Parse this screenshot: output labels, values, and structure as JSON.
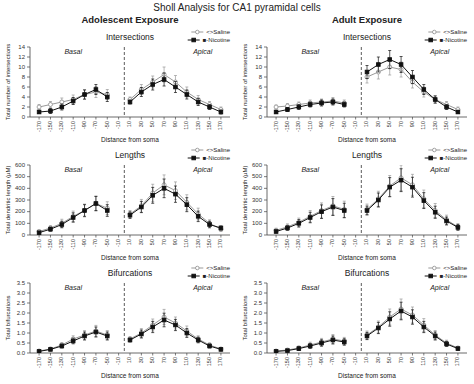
{
  "title": "Sholl Analysis for CA1 pyramidal cells",
  "column_titles": [
    "Adolescent Exposure",
    "Adult Exposure"
  ],
  "chart_data": [
    {
      "type": "line",
      "title": "Intersections",
      "xlabel": "Distance from soma",
      "ylabel": "Total number of intersections",
      "categories": [
        "-170",
        "-150",
        "-130",
        "-110",
        "-90",
        "-70",
        "-50",
        "-10",
        "10",
        "30",
        "50",
        "70",
        "90",
        "110",
        "130",
        "150",
        "170"
      ],
      "annotations": [
        "Basal",
        "Apical"
      ],
      "ylim": [
        0,
        14
      ],
      "yticks": [
        0,
        2,
        4,
        6,
        8,
        10,
        12,
        14
      ],
      "grid": false,
      "legend": "upper right",
      "series": [
        {
          "name": "<>Saline",
          "color": "#999999",
          "marker": "circle-open",
          "values": [
            2.0,
            2.5,
            3.0,
            3.5,
            4.5,
            5.0,
            4.5,
            null,
            3.5,
            5.5,
            7.0,
            8.5,
            7.0,
            5.0,
            3.5,
            2.5,
            1.5
          ],
          "errors": [
            0.5,
            0.6,
            0.8,
            0.9,
            1.0,
            1.1,
            1.0,
            null,
            0.5,
            1.0,
            1.2,
            1.5,
            1.3,
            1.0,
            0.8,
            0.6,
            0.5
          ]
        },
        {
          "name": "■-Nicotine",
          "color": "#111111",
          "marker": "square",
          "values": [
            1.0,
            1.2,
            2.0,
            3.2,
            4.5,
            5.5,
            4.0,
            null,
            3.0,
            5.0,
            6.5,
            7.5,
            6.0,
            4.5,
            3.0,
            2.0,
            1.0
          ],
          "errors": [
            0.3,
            0.5,
            0.6,
            0.7,
            0.9,
            1.0,
            0.9,
            null,
            0.4,
            0.9,
            1.1,
            1.3,
            1.1,
            0.9,
            0.7,
            0.5,
            0.4
          ]
        }
      ]
    },
    {
      "type": "line",
      "title": "Intersections",
      "xlabel": "Distance from soma",
      "ylabel": "Total number of intersections",
      "categories": [
        "-170",
        "-150",
        "-130",
        "-110",
        "-90",
        "-70",
        "-50",
        "-10",
        "10",
        "30",
        "50",
        "70",
        "90",
        "110",
        "130",
        "150",
        "170"
      ],
      "annotations": [
        "Basal",
        "Apical"
      ],
      "ylim": [
        0,
        14
      ],
      "yticks": [
        0,
        2,
        4,
        6,
        8,
        10,
        12,
        14
      ],
      "grid": false,
      "legend": "upper right",
      "series": [
        {
          "name": "<>Saline",
          "color": "#999999",
          "marker": "circle-open",
          "values": [
            2.0,
            2.2,
            2.5,
            2.8,
            3.0,
            3.2,
            2.8,
            null,
            8.0,
            9.0,
            10.0,
            9.5,
            7.0,
            5.0,
            3.5,
            2.5,
            1.5
          ],
          "errors": [
            0.4,
            0.5,
            0.5,
            0.6,
            0.6,
            0.7,
            0.6,
            null,
            1.2,
            1.4,
            1.6,
            1.5,
            1.2,
            1.0,
            0.8,
            0.6,
            0.5
          ]
        },
        {
          "name": "■-Nicotine",
          "color": "#111111",
          "marker": "square",
          "values": [
            1.0,
            1.5,
            2.0,
            2.5,
            2.8,
            3.0,
            2.5,
            null,
            9.0,
            10.5,
            11.5,
            10.5,
            8.0,
            5.5,
            3.5,
            2.0,
            1.0
          ],
          "errors": [
            0.3,
            0.4,
            0.5,
            0.5,
            0.6,
            0.6,
            0.5,
            null,
            1.3,
            1.5,
            1.8,
            1.6,
            1.3,
            1.0,
            0.7,
            0.5,
            0.3
          ]
        }
      ]
    },
    {
      "type": "line",
      "title": "Lengths",
      "xlabel": "Distance from soma",
      "ylabel": "Total dendritic length (µM)",
      "categories": [
        "-170",
        "-150",
        "-130",
        "-110",
        "-90",
        "-70",
        "-50",
        "-10",
        "10",
        "30",
        "50",
        "70",
        "90",
        "110",
        "130",
        "150",
        "170"
      ],
      "annotations": [
        "Basal",
        "Apical"
      ],
      "ylim": [
        0,
        600
      ],
      "yticks": [
        0,
        100,
        200,
        300,
        400,
        500,
        600
      ],
      "grid": false,
      "legend": "upper right",
      "series": [
        {
          "name": "<>Saline",
          "color": "#999999",
          "marker": "circle-open",
          "values": [
            30,
            60,
            100,
            160,
            210,
            270,
            230,
            null,
            180,
            250,
            360,
            430,
            380,
            280,
            180,
            100,
            50
          ],
          "errors": [
            15,
            20,
            35,
            45,
            55,
            65,
            55,
            null,
            30,
            55,
            75,
            85,
            75,
            65,
            50,
            30,
            20
          ]
        },
        {
          "name": "■-Nicotine",
          "color": "#111111",
          "marker": "square",
          "values": [
            20,
            50,
            90,
            150,
            210,
            270,
            210,
            null,
            170,
            240,
            340,
            400,
            350,
            260,
            160,
            90,
            60
          ],
          "errors": [
            10,
            18,
            28,
            40,
            50,
            60,
            50,
            null,
            28,
            48,
            68,
            80,
            70,
            60,
            45,
            28,
            18
          ]
        }
      ]
    },
    {
      "type": "line",
      "title": "Lengths",
      "xlabel": "Distance from soma",
      "ylabel": "Total dendritic length (µM)",
      "categories": [
        "-170",
        "-150",
        "-130",
        "-110",
        "-90",
        "-70",
        "-50",
        "-10",
        "10",
        "30",
        "50",
        "70",
        "90",
        "110",
        "130",
        "150",
        "170"
      ],
      "annotations": [
        "Basal",
        "Apical"
      ],
      "ylim": [
        0,
        600
      ],
      "yticks": [
        0,
        100,
        200,
        300,
        400,
        500,
        600
      ],
      "grid": false,
      "legend": "upper right",
      "series": [
        {
          "name": "<>Saline",
          "color": "#999999",
          "marker": "circle-open",
          "values": [
            40,
            70,
            110,
            160,
            210,
            250,
            220,
            null,
            220,
            310,
            420,
            490,
            430,
            310,
            210,
            130,
            70
          ],
          "errors": [
            18,
            25,
            35,
            50,
            65,
            80,
            70,
            null,
            45,
            65,
            90,
            110,
            90,
            75,
            60,
            40,
            28
          ]
        },
        {
          "name": "■-Nicotine",
          "color": "#111111",
          "marker": "square",
          "values": [
            30,
            60,
            100,
            150,
            200,
            240,
            210,
            null,
            210,
            300,
            410,
            470,
            410,
            295,
            195,
            120,
            65
          ],
          "errors": [
            12,
            20,
            32,
            45,
            58,
            72,
            62,
            null,
            38,
            60,
            82,
            98,
            85,
            68,
            52,
            34,
            24
          ]
        }
      ]
    },
    {
      "type": "line",
      "title": "Bifurcations",
      "xlabel": "Distance from soma",
      "ylabel": "Total bifurcations",
      "categories": [
        "-170",
        "-150",
        "-130",
        "-110",
        "-90",
        "-70",
        "-50",
        "-10",
        "10",
        "30",
        "50",
        "70",
        "90",
        "110",
        "130",
        "150",
        "170"
      ],
      "annotations": [
        "Basal",
        "Apical"
      ],
      "ylim": [
        0,
        3.5
      ],
      "yticks": [
        {
          "value": 0,
          "label": "0.0"
        },
        0.5,
        {
          "value": 1,
          "label": "1.0"
        },
        1.5,
        {
          "value": 2,
          "label": "2.0"
        },
        2.5,
        {
          "value": 3,
          "label": "3.0"
        },
        3.5
      ],
      "grid": false,
      "legend": "upper right",
      "series": [
        {
          "name": "<>Saline",
          "color": "#999999",
          "marker": "circle-open",
          "values": [
            0.1,
            0.2,
            0.4,
            0.7,
            0.9,
            1.1,
            0.9,
            null,
            0.7,
            1.0,
            1.4,
            1.8,
            1.5,
            1.1,
            0.7,
            0.4,
            0.2
          ],
          "errors": [
            0.05,
            0.08,
            0.12,
            0.16,
            0.22,
            0.28,
            0.22,
            null,
            0.12,
            0.22,
            0.3,
            0.38,
            0.3,
            0.25,
            0.16,
            0.1,
            0.08
          ]
        },
        {
          "name": "■-Nicotine",
          "color": "#111111",
          "marker": "square",
          "values": [
            0.08,
            0.18,
            0.35,
            0.6,
            0.85,
            1.05,
            0.85,
            null,
            0.65,
            0.95,
            1.3,
            1.65,
            1.4,
            1.0,
            0.65,
            0.35,
            0.18
          ],
          "errors": [
            0.04,
            0.07,
            0.1,
            0.14,
            0.2,
            0.25,
            0.2,
            null,
            0.1,
            0.2,
            0.28,
            0.34,
            0.28,
            0.22,
            0.14,
            0.1,
            0.07
          ]
        }
      ]
    },
    {
      "type": "line",
      "title": "Bifurcations",
      "xlabel": "Distance from soma",
      "ylabel": "Total bifurcations",
      "categories": [
        "-170",
        "-150",
        "-130",
        "-110",
        "-90",
        "-70",
        "-50",
        "-10",
        "10",
        "30",
        "50",
        "70",
        "90",
        "110",
        "130",
        "150",
        "170"
      ],
      "annotations": [
        "Basal",
        "Apical"
      ],
      "ylim": [
        0,
        3.5
      ],
      "yticks": [
        {
          "value": 0,
          "label": "0.0"
        },
        0.5,
        {
          "value": 1,
          "label": "1.0"
        },
        1.5,
        {
          "value": 2,
          "label": "2.0"
        },
        2.5,
        {
          "value": 3,
          "label": "3.0"
        },
        3.5
      ],
      "grid": false,
      "legend": "upper right",
      "series": [
        {
          "name": "<>Saline",
          "color": "#999999",
          "marker": "circle-open",
          "values": [
            0.1,
            0.15,
            0.25,
            0.4,
            0.55,
            0.7,
            0.6,
            null,
            0.9,
            1.3,
            1.8,
            2.2,
            1.9,
            1.4,
            0.9,
            0.5,
            0.25
          ],
          "errors": [
            0.04,
            0.06,
            0.1,
            0.14,
            0.18,
            0.22,
            0.18,
            null,
            0.2,
            0.3,
            0.4,
            0.5,
            0.4,
            0.32,
            0.22,
            0.14,
            0.08
          ]
        },
        {
          "name": "■-Nicotine",
          "color": "#111111",
          "marker": "square",
          "values": [
            0.08,
            0.12,
            0.22,
            0.35,
            0.5,
            0.65,
            0.55,
            null,
            0.85,
            1.25,
            1.7,
            2.1,
            1.8,
            1.3,
            0.85,
            0.45,
            0.22
          ],
          "errors": [
            0.03,
            0.05,
            0.09,
            0.12,
            0.16,
            0.2,
            0.16,
            null,
            0.18,
            0.28,
            0.36,
            0.44,
            0.36,
            0.28,
            0.2,
            0.12,
            0.07
          ]
        }
      ]
    }
  ]
}
